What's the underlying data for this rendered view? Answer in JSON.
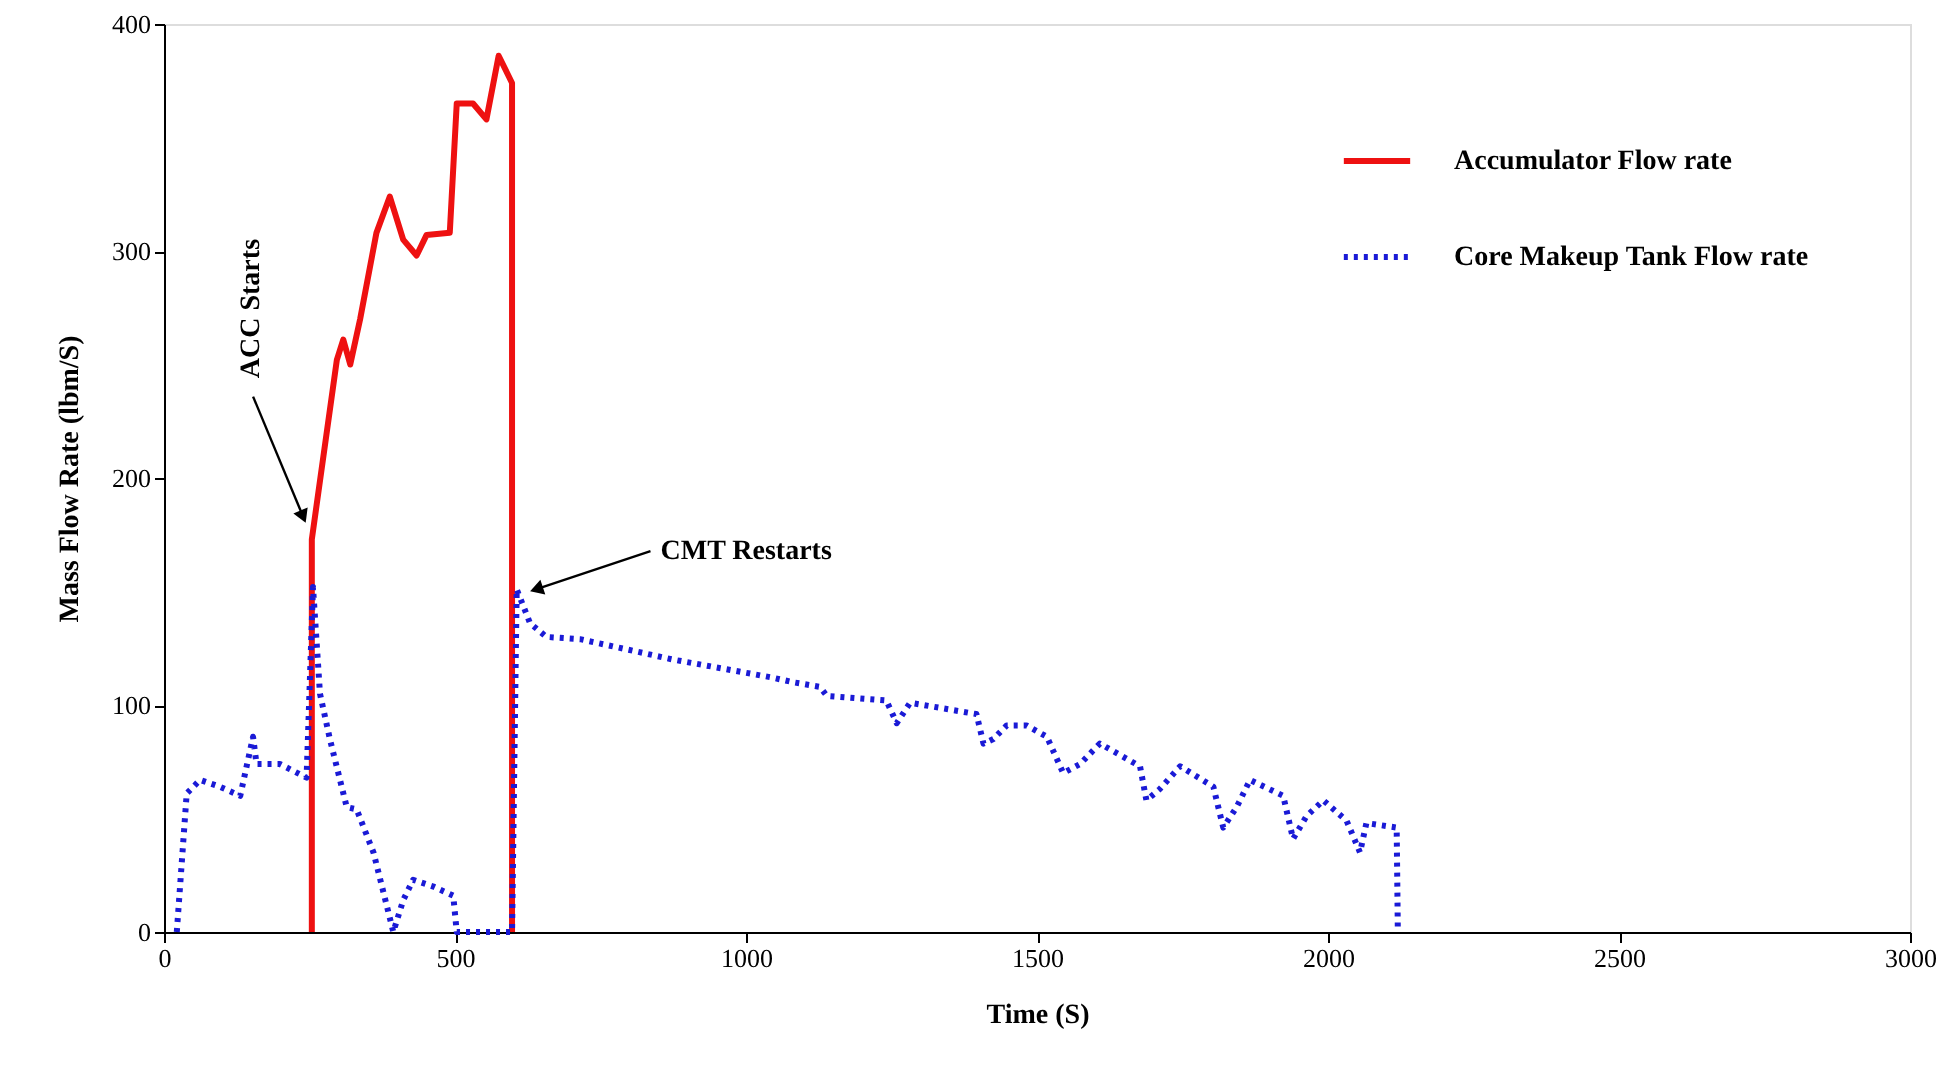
{
  "chart_data": {
    "type": "line",
    "xlabel": "Time (S)",
    "ylabel": "Mass Flow Rate (lbm/S)",
    "xlim": [
      0,
      3000
    ],
    "xticks": [
      0,
      500,
      1000,
      1500,
      2000,
      2500,
      3000
    ],
    "ylim": [
      0,
      400
    ],
    "yticks": [
      0,
      100,
      200,
      300,
      400
    ],
    "grid": false,
    "legend": "top right",
    "marker": "none",
    "annotations": [
      {
        "text": "ACC Starts",
        "x": 239,
        "y": 183
      },
      {
        "text": "CMT Restarts",
        "x": 640,
        "y": 151
      }
    ],
    "series": [
      {
        "name": "Accumulator Flow rate",
        "color": "#ee1111",
        "line_style": "solid",
        "x": [
          254,
          254,
          297,
          308,
          320,
          337,
          365,
          388,
          411,
          434,
          451,
          491,
          503,
          531,
          554,
          575,
          598,
          598
        ],
        "values": [
          0,
          173,
          252,
          261,
          250,
          270,
          308,
          324,
          305,
          298,
          307,
          308,
          365,
          365,
          358,
          386,
          374,
          0
        ]
      },
      {
        "name": "Core Makeup Tank Flow rate",
        "color": "#1a1ad6",
        "line_style": "dotted",
        "x": [
          22,
          39,
          62,
          96,
          131,
          153,
          159,
          199,
          245,
          256,
          268,
          285,
          314,
          331,
          360,
          394,
          411,
          428,
          463,
          497,
          503,
          598,
          606,
          629,
          657,
          715,
          875,
          1047,
          1081,
          1127,
          1139,
          1241,
          1259,
          1282,
          1396,
          1408,
          1425,
          1448,
          1482,
          1517,
          1545,
          1574,
          1608,
          1677,
          1688,
          1711,
          1746,
          1803,
          1820,
          1843,
          1866,
          1923,
          1940,
          1963,
          1992,
          2032,
          2055,
          2066,
          2118,
          2120
        ],
        "values": [
          0,
          61,
          67,
          64,
          60,
          86,
          74,
          74,
          68,
          152,
          105,
          85,
          55,
          54,
          35,
          0,
          14,
          23,
          20,
          16,
          0,
          0,
          151,
          136,
          130,
          129,
          120,
          112,
          110,
          108,
          104,
          102,
          92,
          101,
          96,
          83,
          85,
          91,
          91,
          86,
          70,
          74,
          83,
          73,
          58,
          63,
          73,
          64,
          46,
          55,
          67,
          60,
          41,
          51,
          58,
          49,
          35,
          48,
          46,
          0
        ]
      }
    ]
  }
}
